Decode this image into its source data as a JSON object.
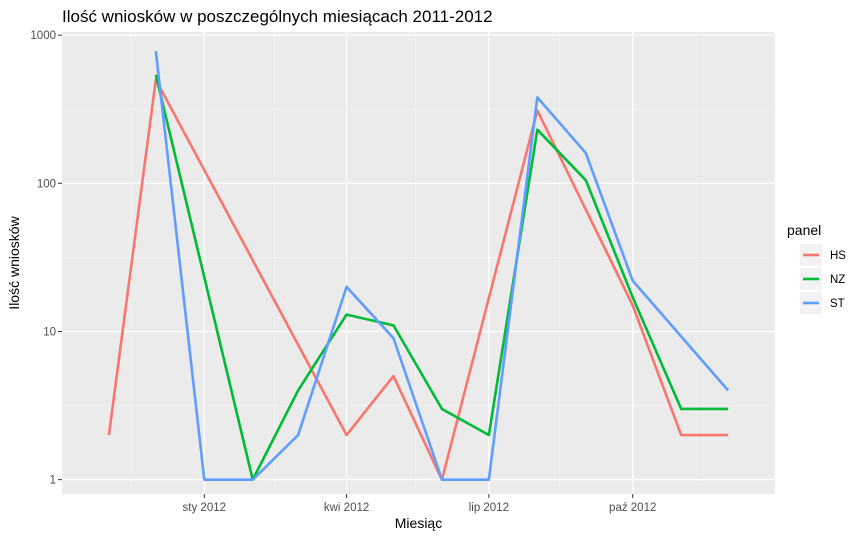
{
  "chart_data": {
    "type": "line",
    "title": "Ilość wniosków w poszczególnych miesiącach 2011-2012",
    "xlabel": "Miesiąc",
    "ylabel": "Ilość wniosków",
    "yscale": "log",
    "ylim": [
      0.8,
      1050
    ],
    "yticks": [
      1,
      10,
      100,
      1000
    ],
    "ytick_labels": [
      "1",
      "10",
      "100",
      "1000"
    ],
    "xlim": [
      "2011-10-02",
      "2012-12-31"
    ],
    "xticks": [
      "2012-01-01",
      "2012-04-01",
      "2012-07-01",
      "2012-10-01"
    ],
    "xtick_labels": [
      "sty 2012",
      "kwi 2012",
      "lip 2012",
      "paź 2012"
    ],
    "x_minor_gridlines": [
      "2011-11-15",
      "2012-02-15",
      "2012-05-15",
      "2012-08-15",
      "2012-11-15"
    ],
    "grid": true,
    "legend": {
      "title": "panel",
      "position": "right"
    },
    "series": [
      {
        "name": "HS",
        "color": "#F8766D",
        "points": [
          [
            "2011-11-01",
            2
          ],
          [
            "2011-12-01",
            500
          ],
          [
            "2012-04-01",
            2
          ],
          [
            "2012-05-01",
            5
          ],
          [
            "2012-06-01",
            1
          ],
          [
            "2012-08-01",
            310
          ],
          [
            "2012-10-01",
            15
          ],
          [
            "2012-11-01",
            2
          ],
          [
            "2012-12-01",
            2
          ]
        ]
      },
      {
        "name": "NZ",
        "color": "#00BA38",
        "points": [
          [
            "2011-12-01",
            540
          ],
          [
            "2012-02-01",
            1
          ],
          [
            "2012-03-01",
            4
          ],
          [
            "2012-04-01",
            13
          ],
          [
            "2012-05-01",
            11
          ],
          [
            "2012-06-01",
            3
          ],
          [
            "2012-07-01",
            2
          ],
          [
            "2012-08-01",
            230
          ],
          [
            "2012-09-01",
            105
          ],
          [
            "2012-10-01",
            17
          ],
          [
            "2012-11-01",
            3
          ],
          [
            "2012-12-01",
            3
          ]
        ]
      },
      {
        "name": "ST",
        "color": "#619CFF",
        "points": [
          [
            "2011-12-01",
            780
          ],
          [
            "2012-01-01",
            1
          ],
          [
            "2012-02-01",
            1
          ],
          [
            "2012-03-01",
            2
          ],
          [
            "2012-04-01",
            20
          ],
          [
            "2012-05-01",
            9
          ],
          [
            "2012-06-01",
            1
          ],
          [
            "2012-07-01",
            1
          ],
          [
            "2012-08-01",
            380
          ],
          [
            "2012-09-01",
            160
          ],
          [
            "2012-10-01",
            22
          ],
          [
            "2012-12-01",
            4
          ]
        ]
      }
    ]
  }
}
